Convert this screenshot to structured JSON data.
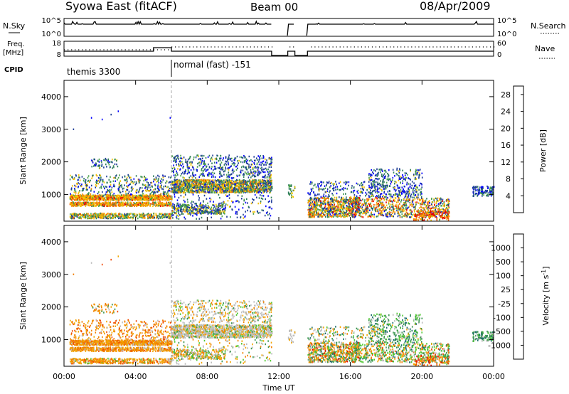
{
  "header": {
    "station": "Syowa East (fitACF)",
    "beam": "Beam 00",
    "date": "08/Apr/2009"
  },
  "top_panels": {
    "nsky_label": "N.Sky",
    "nsky_ticks": [
      "10^5",
      "10^0"
    ],
    "nsearch_label": "N.Search",
    "nsearch_ticks": [
      "10^5",
      "10^0"
    ],
    "freq_label": "Freq.",
    "freq_unit": "[MHz]",
    "freq_ticks": [
      "18",
      "8"
    ],
    "nave_label": "Nave",
    "nave_ticks": [
      "60",
      "0"
    ],
    "cpid_label": "CPID",
    "cpid_segments": [
      {
        "label": "themis 3300",
        "start_hour": 0,
        "end_hour": 6
      },
      {
        "label": "normal (fast) -151",
        "start_hour": 6,
        "end_hour": 24
      }
    ]
  },
  "colors": {
    "power": [
      "#0000ff",
      "#1e3c96",
      "#2e7d5a",
      "#4da34d",
      "#f2c200",
      "#f29100",
      "#f25a00",
      "#e60000"
    ],
    "velocity": [
      "#1e3cb4",
      "#1e6e6e",
      "#3c9650",
      "#50c832",
      "#bebebe",
      "#f2a500",
      "#f28200",
      "#f04b00",
      "#e60000"
    ]
  },
  "chart_data": [
    {
      "type": "heatmap",
      "name": "power",
      "xlabel": "",
      "ylabel": "Slant Range [km]",
      "xlim": [
        0,
        24
      ],
      "ylim": [
        180,
        4500
      ],
      "x_ticks": [
        0,
        4,
        8,
        12,
        16,
        20,
        24
      ],
      "y_ticks": [
        1000,
        2000,
        3000,
        4000
      ],
      "y_tick_labels": [
        "1000",
        "2000",
        "3000",
        "4000"
      ],
      "colorbar": {
        "label": "Power [dB]",
        "ticks": [
          "4",
          "8",
          "12",
          "16",
          "20",
          "24",
          "28"
        ],
        "range": [
          0,
          30
        ]
      }
    },
    {
      "type": "heatmap",
      "name": "velocity",
      "xlabel": "Time UT",
      "ylabel": "Slant Range [km]",
      "xlim": [
        0,
        24
      ],
      "ylim": [
        180,
        4500
      ],
      "x_ticks": [
        0,
        4,
        8,
        12,
        16,
        20,
        24
      ],
      "x_tick_labels": [
        "00:00",
        "04:00",
        "08:00",
        "12:00",
        "16:00",
        "20:00",
        "00:00"
      ],
      "y_ticks": [
        1000,
        2000,
        3000,
        4000
      ],
      "y_tick_labels": [
        "1000",
        "2000",
        "3000",
        "4000"
      ],
      "colorbar": {
        "label": "Velocity [m s^-1]",
        "ticks": [
          "1000",
          "500",
          "100",
          "25",
          "-25",
          "-100",
          "-500",
          "-1000"
        ]
      }
    }
  ]
}
